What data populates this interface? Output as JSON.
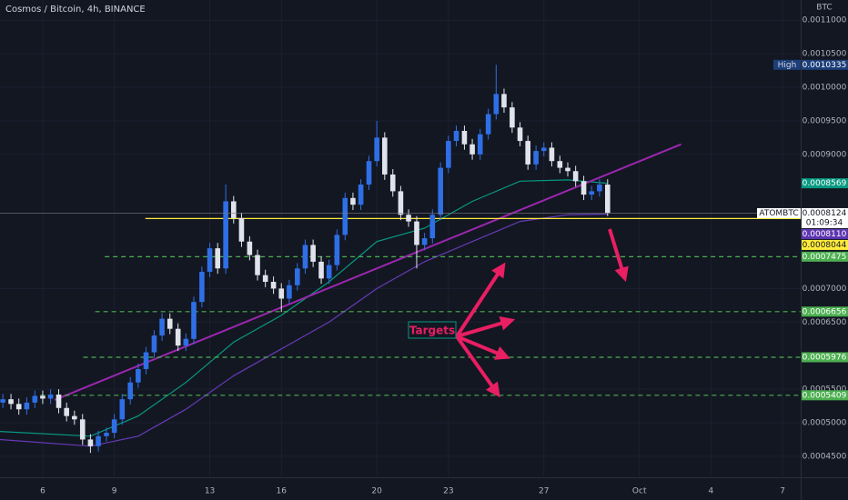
{
  "chart_data": {
    "type": "candlestick",
    "title": "Cosmos / Bitcoin, 4h, BINANCE",
    "currency": "BTC",
    "xlim": [
      4.21,
      37.76
    ],
    "ylim": [
      0.0004187,
      0.0011301
    ],
    "xticks": [
      6,
      9,
      13,
      16,
      20,
      23,
      27,
      {
        "value": 31,
        "label": "Oct"
      },
      {
        "value": 34,
        "label": "4"
      },
      {
        "value": 37,
        "label": "7"
      }
    ],
    "yticks": [
      {
        "value": 0.00045,
        "label": "0.0004500"
      },
      {
        "value": 0.0005,
        "label": "0.0005000"
      },
      {
        "value": 0.00055,
        "label": "0.0005500"
      },
      {
        "value": 0.00065,
        "label": "0.0006500"
      },
      {
        "value": 0.0007,
        "label": "0.0007000"
      },
      {
        "value": 0.0009,
        "label": "0.0009000"
      },
      {
        "value": 0.00095,
        "label": "0.0009500"
      },
      {
        "value": 0.001,
        "label": "0.0010000"
      },
      {
        "value": 0.00105,
        "label": "0.0010500"
      },
      {
        "value": 0.0011,
        "label": "0.0011000"
      }
    ],
    "grid": true,
    "up_color": "#2f6fe6",
    "down_color": "#e0e3eb",
    "candles": {
      "x": [
        4.33,
        4.67,
        5,
        5.33,
        5.67,
        6,
        6.33,
        6.67,
        7,
        7.33,
        7.67,
        8,
        8.33,
        8.67,
        9,
        9.33,
        9.67,
        10,
        10.33,
        10.67,
        11,
        11.33,
        11.67,
        12,
        12.33,
        12.67,
        13,
        13.33,
        13.67,
        14,
        14.33,
        14.67,
        15,
        15.33,
        15.67,
        16,
        16.33,
        16.67,
        17,
        17.33,
        17.67,
        18,
        18.33,
        18.67,
        19,
        19.33,
        19.67,
        20,
        20.33,
        20.67,
        21,
        21.33,
        21.67,
        22,
        22.33,
        22.67,
        23,
        23.33,
        23.67,
        24,
        24.33,
        24.67,
        25,
        25.33,
        25.67,
        26,
        26.33,
        26.67,
        27,
        27.33,
        27.67,
        28,
        28.33,
        28.67,
        29,
        29.33,
        29.67
      ],
      "open": [
        0.00053,
        0.000535,
        0.000528,
        0.00052,
        0.00053,
        0.00054,
        0.000536,
        0.000542,
        0.000522,
        0.00051,
        0.000505,
        0.000475,
        0.000465,
        0.00048,
        0.000485,
        0.000505,
        0.000535,
        0.00056,
        0.00058,
        0.000605,
        0.00063,
        0.000655,
        0.00064,
        0.000615,
        0.000625,
        0.00068,
        0.000725,
        0.00076,
        0.00073,
        0.00083,
        0.000805,
        0.00077,
        0.00075,
        0.00072,
        0.00071,
        0.0007,
        0.000685,
        0.000705,
        0.00073,
        0.000765,
        0.00074,
        0.000715,
        0.000735,
        0.00078,
        0.000835,
        0.000825,
        0.000855,
        0.00089,
        0.000925,
        0.00087,
        0.000845,
        0.00081,
        0.0008,
        0.000765,
        0.000775,
        0.00081,
        0.00088,
        0.00092,
        0.000935,
        0.000915,
        0.0009,
        0.00093,
        0.00096,
        0.00099,
        0.00097,
        0.00094,
        0.00092,
        0.000885,
        0.000905,
        0.00091,
        0.00089,
        0.00088,
        0.000875,
        0.00086,
        0.00084,
        0.000845,
        0.000855
      ],
      "high": [
        0.000543,
        0.000543,
        0.000536,
        0.000538,
        0.000548,
        0.000548,
        0.00055,
        0.00055,
        0.00053,
        0.000518,
        0.000513,
        0.000483,
        0.000488,
        0.000493,
        0.000513,
        0.000543,
        0.000568,
        0.000588,
        0.000613,
        0.000638,
        0.000663,
        0.000663,
        0.000648,
        0.000633,
        0.000688,
        0.000733,
        0.000768,
        0.000768,
        0.000855,
        0.000838,
        0.000813,
        0.000778,
        0.000758,
        0.000728,
        0.000718,
        0.000708,
        0.000713,
        0.000738,
        0.000773,
        0.000773,
        0.000748,
        0.000743,
        0.000788,
        0.000843,
        0.000843,
        0.000863,
        0.000898,
        0.00095,
        0.000933,
        0.000878,
        0.000853,
        0.000818,
        0.000808,
        0.000783,
        0.000818,
        0.000888,
        0.000928,
        0.000943,
        0.000943,
        0.000923,
        0.000938,
        0.000968,
        0.0010335,
        0.000998,
        0.000978,
        0.000948,
        0.000928,
        0.000913,
        0.000918,
        0.000918,
        0.000898,
        0.000888,
        0.000883,
        0.000868,
        0.000853,
        0.000863,
        0.000863
      ],
      "low": [
        0.000522,
        0.00052,
        0.000512,
        0.000512,
        0.000522,
        0.000528,
        0.000528,
        0.000514,
        0.000502,
        0.000497,
        0.000467,
        0.000455,
        0.000457,
        0.000472,
        0.000477,
        0.000497,
        0.000527,
        0.000552,
        0.000572,
        0.000597,
        0.000622,
        0.000632,
        0.000607,
        0.000607,
        0.000617,
        0.000672,
        0.000717,
        0.000722,
        0.000722,
        0.000797,
        0.000762,
        0.000742,
        0.000712,
        0.000702,
        0.000692,
        0.000665,
        0.000677,
        0.000697,
        0.000722,
        0.000732,
        0.000707,
        0.000707,
        0.000727,
        0.000772,
        0.000817,
        0.000817,
        0.000847,
        0.000882,
        0.000862,
        0.000837,
        0.000802,
        0.000792,
        0.00073,
        0.000757,
        0.000767,
        0.000802,
        0.000872,
        0.000912,
        0.000907,
        0.000892,
        0.000892,
        0.000922,
        0.000952,
        0.000962,
        0.000932,
        0.000912,
        0.000877,
        0.000877,
        0.000897,
        0.000882,
        0.000872,
        0.000867,
        0.000852,
        0.000832,
        0.000832,
        0.000837,
        0.000808
      ],
      "close": [
        0.000535,
        0.000528,
        0.00052,
        0.00053,
        0.00054,
        0.000536,
        0.000542,
        0.000522,
        0.00051,
        0.000505,
        0.000475,
        0.000465,
        0.00048,
        0.000485,
        0.000505,
        0.000535,
        0.00056,
        0.00058,
        0.000605,
        0.00063,
        0.000655,
        0.00064,
        0.000615,
        0.000625,
        0.00068,
        0.000725,
        0.00076,
        0.00073,
        0.00083,
        0.000805,
        0.00077,
        0.00075,
        0.00072,
        0.00071,
        0.0007,
        0.000685,
        0.000705,
        0.00073,
        0.000765,
        0.00074,
        0.000715,
        0.000735,
        0.00078,
        0.000835,
        0.000825,
        0.000855,
        0.00089,
        0.000925,
        0.00087,
        0.000845,
        0.00081,
        0.0008,
        0.000765,
        0.000775,
        0.00081,
        0.00088,
        0.00092,
        0.000935,
        0.000915,
        0.0009,
        0.00093,
        0.00096,
        0.00099,
        0.00097,
        0.00094,
        0.00092,
        0.000885,
        0.000905,
        0.00091,
        0.00089,
        0.00088,
        0.000875,
        0.00086,
        0.00084,
        0.000845,
        0.000855,
        0.0008124
      ]
    },
    "lines": [
      {
        "color": "#089981",
        "x": [
          4.21,
          8,
          10,
          12,
          14,
          16,
          18,
          20,
          22,
          24,
          26,
          28,
          29.67
        ],
        "values": [
          0.000487,
          0.00048,
          0.00051,
          0.00056,
          0.00062,
          0.00066,
          0.00071,
          0.00077,
          0.00079,
          0.00083,
          0.00086,
          0.000862,
          0.0008569
        ]
      },
      {
        "color": "#673ab7",
        "x": [
          4.21,
          8,
          10,
          12,
          14,
          16,
          18,
          20,
          22,
          24,
          26,
          28,
          29.67
        ],
        "values": [
          0.000475,
          0.000465,
          0.00048,
          0.00052,
          0.00057,
          0.00061,
          0.00065,
          0.0007,
          0.00074,
          0.00077,
          0.0008,
          0.00081,
          0.000811
        ]
      },
      {
        "color": "#9c27b0",
        "x": [
          6.5,
          32.75
        ],
        "values": [
          0.000534,
          0.000915
        ]
      }
    ],
    "levels": [
      {
        "value": 0.0008044,
        "label": "0.0008044",
        "from": 10.3,
        "color": "#ffeb3b",
        "dashed": false
      },
      {
        "value": 0.0007475,
        "label": "0.0007475",
        "from": 8.6,
        "color": "#4caf50",
        "dashed": true
      },
      {
        "value": 0.0006656,
        "label": "0.0006656",
        "from": 8.2,
        "color": "#4caf50",
        "dashed": true
      },
      {
        "value": 0.0005976,
        "label": "0.0005976",
        "from": 7.7,
        "color": "#4caf50",
        "dashed": true
      },
      {
        "value": 0.0005409,
        "label": "0.0005409",
        "from": 5.9,
        "color": "#4caf50",
        "dashed": true
      }
    ],
    "markers": [
      {
        "value": 0.0010335,
        "label": "0.0010335",
        "tag": "High",
        "color": "#1c3f7a"
      },
      {
        "value": 0.0008569,
        "label": "0.0008569",
        "color": "#089981"
      },
      {
        "value": 0.0008124,
        "label": "0.0008124",
        "tag": "ATOMBTC",
        "countdown": "01:09:34",
        "color": "#ffffff"
      },
      {
        "value": 0.000811,
        "label": "0.0008110",
        "color": "#5e35b1"
      }
    ],
    "annotation": "Targets"
  }
}
